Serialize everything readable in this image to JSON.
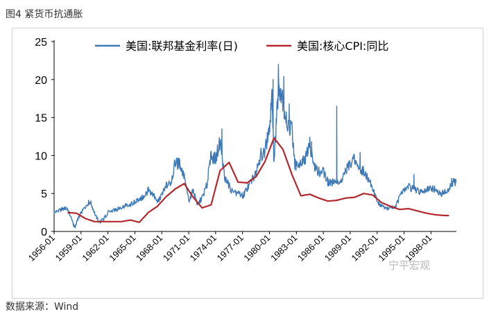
{
  "figure_title": "图4 紧货币抗通胀",
  "source_note": "数据来源：Wind",
  "watermark": "宁平宏观",
  "colors": {
    "fed_funds": "#3d79b8",
    "core_cpi": "#b3282d",
    "axis": "#000000",
    "frame": "#cfcfcf"
  },
  "chart_data": {
    "type": "line",
    "title": "",
    "xlabel": "",
    "ylabel": "",
    "ylim": [
      0,
      25
    ],
    "yticks": [
      0,
      5,
      10,
      15,
      20,
      25
    ],
    "xlim": [
      1956.0,
      2000.83
    ],
    "xtick_labels": [
      "1956-01",
      "1959-01",
      "1962-01",
      "1965-01",
      "1968-01",
      "1971-01",
      "1974-01",
      "1977-01",
      "1980-01",
      "1983-01",
      "1986-01",
      "1989-01",
      "1992-01",
      "1995-01",
      "1998-01"
    ],
    "grid": false,
    "legend_position": "top",
    "series": [
      {
        "name": "美国:联邦基金利率(日)",
        "color": "#3d79b8",
        "points": [
          [
            1956.0,
            2.5
          ],
          [
            1956.5,
            2.7
          ],
          [
            1957.0,
            3.0
          ],
          [
            1957.5,
            3.0
          ],
          [
            1958.0,
            1.5
          ],
          [
            1958.3,
            0.5
          ],
          [
            1958.6,
            1.5
          ],
          [
            1959.0,
            2.4
          ],
          [
            1959.5,
            3.3
          ],
          [
            1960.0,
            4.0
          ],
          [
            1960.5,
            2.5
          ],
          [
            1961.0,
            1.2
          ],
          [
            1961.5,
            1.6
          ],
          [
            1962.0,
            2.5
          ],
          [
            1962.5,
            2.7
          ],
          [
            1963.0,
            2.9
          ],
          [
            1963.5,
            3.2
          ],
          [
            1964.0,
            3.4
          ],
          [
            1964.5,
            3.5
          ],
          [
            1965.0,
            3.9
          ],
          [
            1965.5,
            4.1
          ],
          [
            1966.0,
            4.6
          ],
          [
            1966.5,
            5.4
          ],
          [
            1967.0,
            4.9
          ],
          [
            1967.5,
            3.9
          ],
          [
            1968.0,
            4.7
          ],
          [
            1968.5,
            6.0
          ],
          [
            1969.0,
            6.4
          ],
          [
            1969.5,
            9.0
          ],
          [
            1970.0,
            8.9
          ],
          [
            1970.5,
            7.2
          ],
          [
            1971.0,
            4.1
          ],
          [
            1971.5,
            5.3
          ],
          [
            1972.0,
            3.5
          ],
          [
            1972.5,
            4.5
          ],
          [
            1973.0,
            6.0
          ],
          [
            1973.5,
            10.0
          ],
          [
            1974.0,
            9.5
          ],
          [
            1974.5,
            12.0
          ],
          [
            1975.0,
            7.1
          ],
          [
            1975.5,
            6.0
          ],
          [
            1976.0,
            4.9
          ],
          [
            1976.5,
            5.2
          ],
          [
            1977.0,
            4.6
          ],
          [
            1977.5,
            5.6
          ],
          [
            1978.0,
            6.7
          ],
          [
            1978.5,
            7.8
          ],
          [
            1979.0,
            10.1
          ],
          [
            1979.5,
            10.5
          ],
          [
            1980.0,
            13.8
          ],
          [
            1980.3,
            17.6
          ],
          [
            1980.5,
            9.0
          ],
          [
            1980.8,
            15.0
          ],
          [
            1981.0,
            19.1
          ],
          [
            1981.3,
            18.5
          ],
          [
            1981.6,
            16.5
          ],
          [
            1982.0,
            14.0
          ],
          [
            1982.5,
            13.5
          ],
          [
            1982.8,
            9.0
          ],
          [
            1983.0,
            8.7
          ],
          [
            1983.5,
            9.4
          ],
          [
            1984.0,
            9.6
          ],
          [
            1984.5,
            11.5
          ],
          [
            1985.0,
            8.4
          ],
          [
            1985.5,
            7.9
          ],
          [
            1986.0,
            8.0
          ],
          [
            1986.5,
            6.5
          ],
          [
            1987.0,
            6.4
          ],
          [
            1987.5,
            6.8
          ],
          [
            1988.0,
            6.8
          ],
          [
            1988.5,
            8.0
          ],
          [
            1989.0,
            9.1
          ],
          [
            1989.5,
            9.5
          ],
          [
            1990.0,
            8.2
          ],
          [
            1990.5,
            8.1
          ],
          [
            1991.0,
            6.9
          ],
          [
            1991.5,
            5.8
          ],
          [
            1992.0,
            4.0
          ],
          [
            1992.5,
            3.3
          ],
          [
            1993.0,
            3.0
          ],
          [
            1993.5,
            3.1
          ],
          [
            1994.0,
            3.2
          ],
          [
            1994.5,
            4.5
          ],
          [
            1995.0,
            5.5
          ],
          [
            1995.5,
            5.9
          ],
          [
            1996.0,
            5.6
          ],
          [
            1996.5,
            5.3
          ],
          [
            1997.0,
            5.3
          ],
          [
            1997.5,
            5.5
          ],
          [
            1998.0,
            5.6
          ],
          [
            1998.5,
            5.5
          ],
          [
            1999.0,
            4.9
          ],
          [
            1999.5,
            5.1
          ],
          [
            2000.0,
            5.5
          ],
          [
            2000.5,
            6.5
          ],
          [
            2000.8,
            6.4
          ]
        ],
        "spikes": [
          [
            1974.7,
            13.5
          ],
          [
            1980.4,
            20.0
          ],
          [
            1981.0,
            22.0
          ],
          [
            1981.6,
            20.4
          ],
          [
            1982.2,
            16.8
          ],
          [
            1984.7,
            11.8
          ],
          [
            1987.5,
            16.5
          ],
          [
            1990.1,
            10.4
          ],
          [
            1996.1,
            7.5
          ],
          [
            2000.3,
            7.0
          ]
        ]
      },
      {
        "name": "美国:核心CPI:同比",
        "color": "#b3282d",
        "points": [
          [
            1957.5,
            2.5
          ],
          [
            1958.5,
            2.4
          ],
          [
            1959.5,
            1.7
          ],
          [
            1960.5,
            1.3
          ],
          [
            1961.5,
            1.3
          ],
          [
            1962.5,
            1.3
          ],
          [
            1963.5,
            1.3
          ],
          [
            1964.5,
            1.5
          ],
          [
            1965.5,
            1.2
          ],
          [
            1966.5,
            2.5
          ],
          [
            1967.5,
            3.3
          ],
          [
            1968.5,
            4.6
          ],
          [
            1969.5,
            5.6
          ],
          [
            1970.5,
            6.3
          ],
          [
            1971.5,
            4.5
          ],
          [
            1972.5,
            3.1
          ],
          [
            1973.5,
            3.5
          ],
          [
            1974.5,
            8.0
          ],
          [
            1975.5,
            9.1
          ],
          [
            1976.5,
            6.5
          ],
          [
            1977.5,
            6.4
          ],
          [
            1978.5,
            7.2
          ],
          [
            1979.5,
            9.2
          ],
          [
            1980.5,
            12.3
          ],
          [
            1981.5,
            10.8
          ],
          [
            1982.5,
            7.5
          ],
          [
            1983.5,
            4.7
          ],
          [
            1984.5,
            4.9
          ],
          [
            1985.5,
            4.4
          ],
          [
            1986.5,
            4.0
          ],
          [
            1987.5,
            4.1
          ],
          [
            1988.5,
            4.4
          ],
          [
            1989.5,
            4.5
          ],
          [
            1990.5,
            5.0
          ],
          [
            1991.5,
            4.8
          ],
          [
            1992.5,
            3.8
          ],
          [
            1993.5,
            3.3
          ],
          [
            1994.5,
            2.9
          ],
          [
            1995.5,
            3.0
          ],
          [
            1996.5,
            2.7
          ],
          [
            1997.5,
            2.4
          ],
          [
            1998.5,
            2.2
          ],
          [
            1999.5,
            2.1
          ],
          [
            2000.0,
            2.1
          ]
        ]
      }
    ]
  }
}
